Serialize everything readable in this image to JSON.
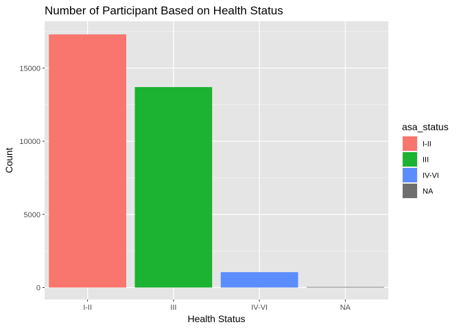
{
  "chart_data": {
    "type": "bar",
    "title": "Number of Participant Based on Health Status",
    "xlabel": "Health Status",
    "ylabel": "Count",
    "categories": [
      "I-II",
      "III",
      "IV-VI",
      "NA"
    ],
    "values": [
      17300,
      13700,
      1050,
      40
    ],
    "colors": [
      "#F8766D",
      "#1BB331",
      "#5B8DFF",
      "#6E6E6E"
    ],
    "ylim": [
      0,
      18200
    ],
    "yticks": [
      0,
      5000,
      10000,
      15000
    ],
    "ytick_labels": [
      "0",
      "5000",
      "10000",
      "15000"
    ],
    "grid": true,
    "panel_background": "#E5E5E5",
    "legend": {
      "title": "asa_status",
      "placement": "right",
      "entries": [
        "I-II",
        "III",
        "IV-VI",
        "NA"
      ]
    }
  }
}
